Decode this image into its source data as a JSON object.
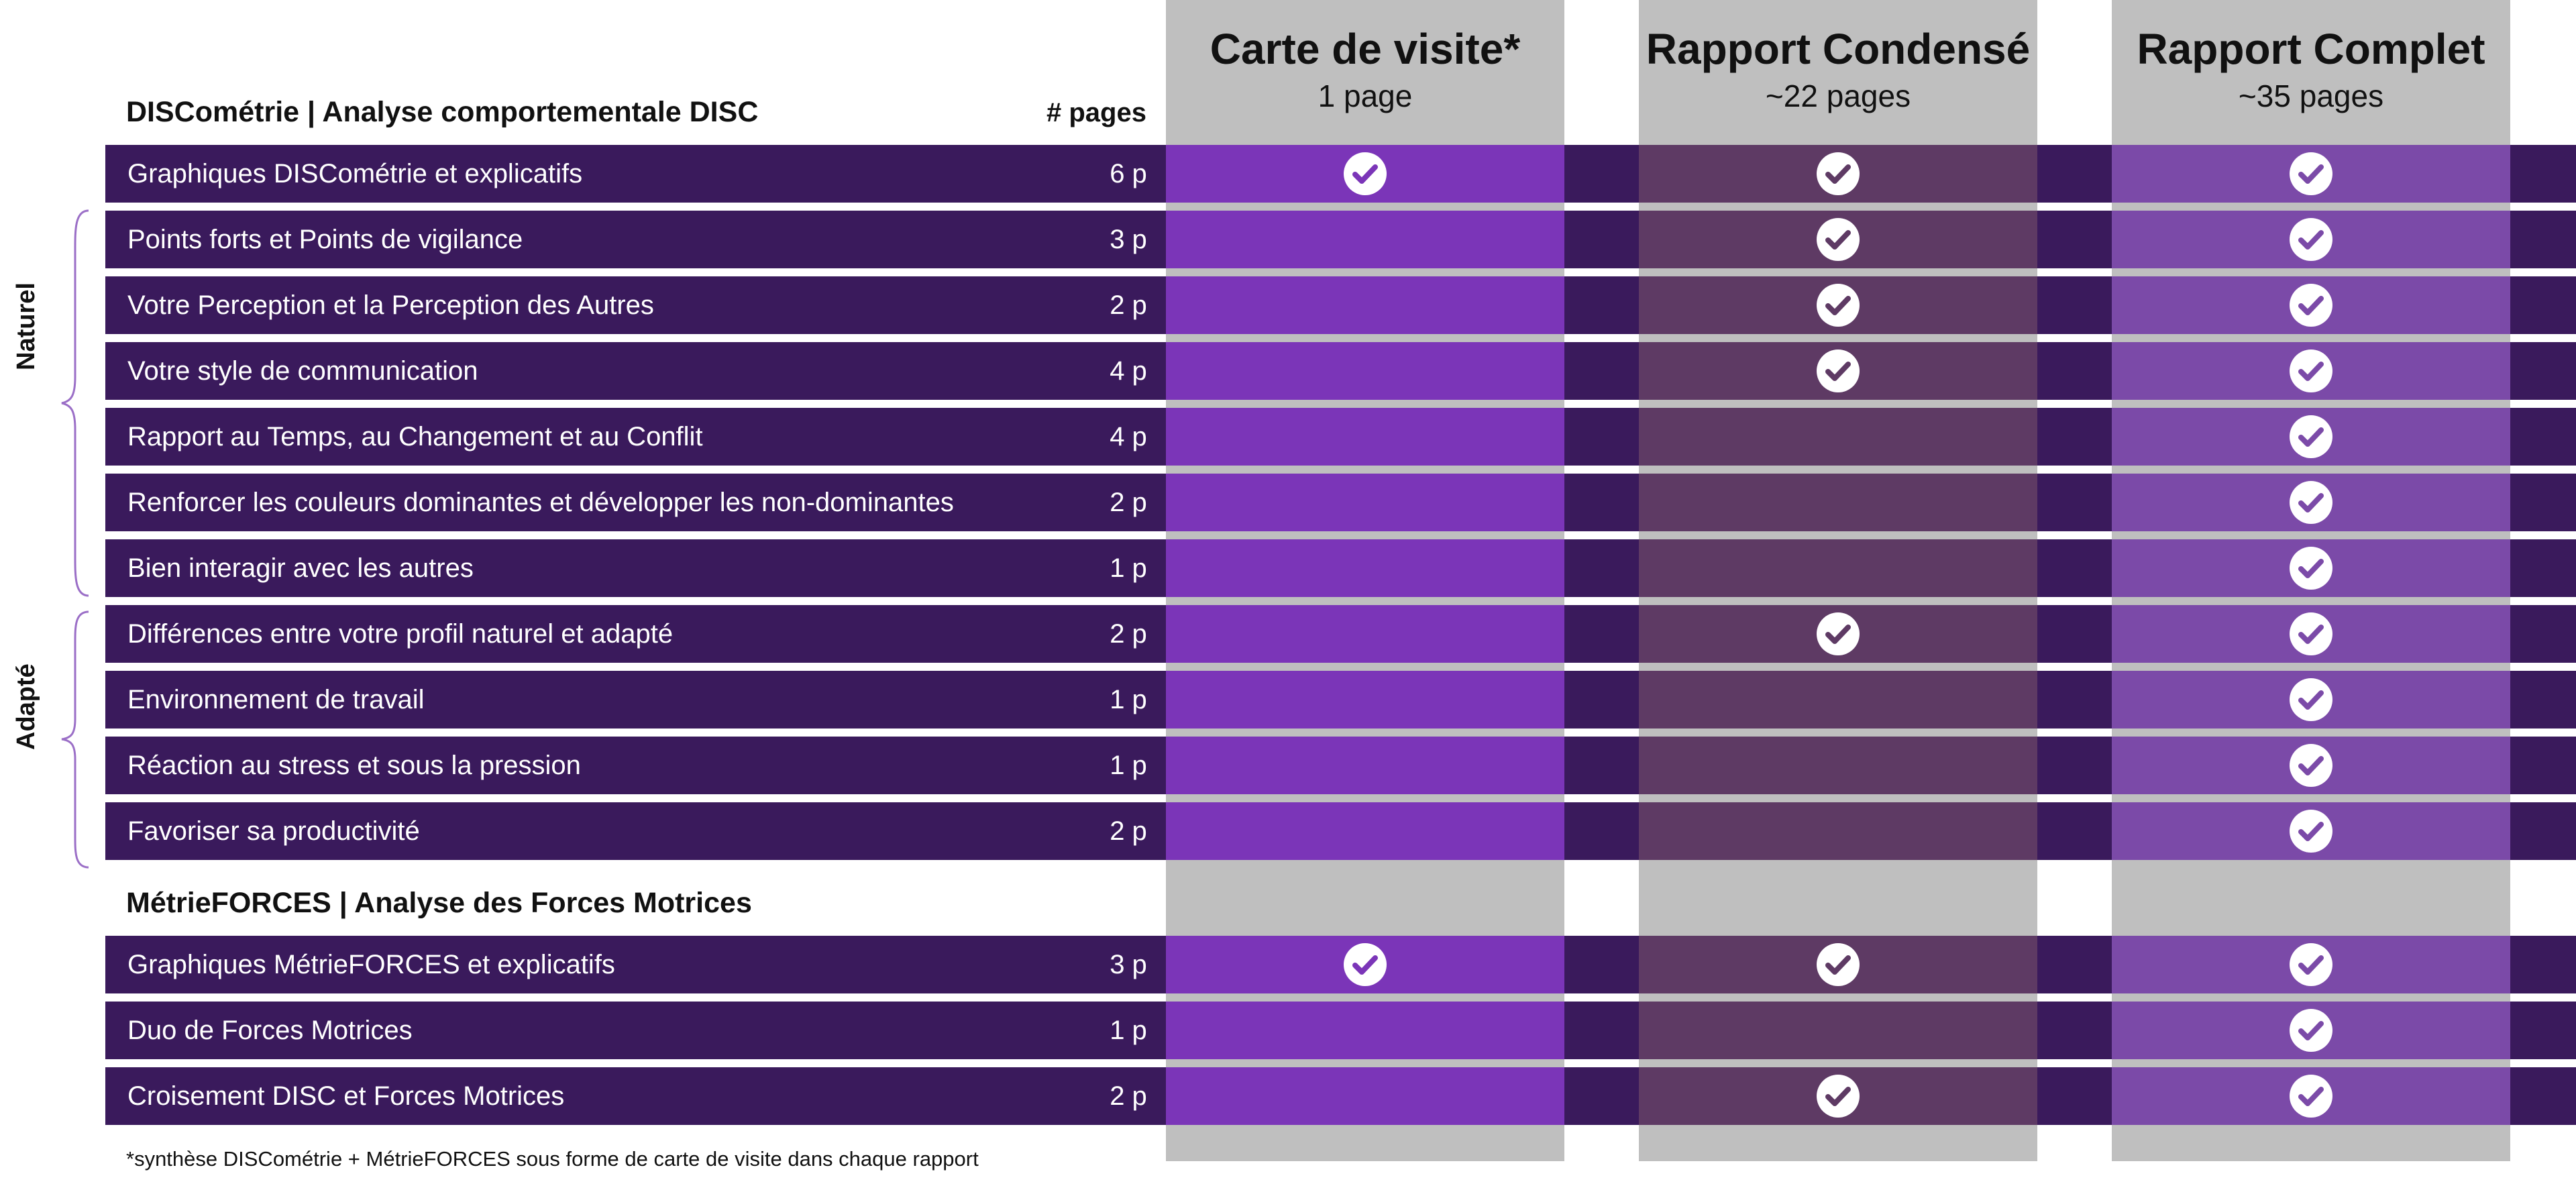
{
  "header": {
    "section1_title": "DISCométrie | Analyse comportementale DISC",
    "pages_header": "# pages",
    "section2_title": "MétrieFORCES | Analyse des Forces Motrices"
  },
  "columns": [
    {
      "title": "Carte de visite*",
      "subtitle": "1 page"
    },
    {
      "title": "Rapport Condensé",
      "subtitle": "~22 pages"
    },
    {
      "title": "Rapport Complet",
      "subtitle": "~35 pages"
    }
  ],
  "side_labels": {
    "naturel": "Naturel",
    "adapte": "Adapté"
  },
  "rows": [
    {
      "label": "Graphiques DISCométrie et explicatifs",
      "pages": "6 p",
      "checks": [
        true,
        true,
        true
      ]
    },
    {
      "label": "Points forts et Points de vigilance",
      "pages": "3 p",
      "checks": [
        false,
        true,
        true
      ]
    },
    {
      "label": "Votre Perception et la Perception des Autres",
      "pages": "2 p",
      "checks": [
        false,
        true,
        true
      ]
    },
    {
      "label": "Votre style de communication",
      "pages": "4 p",
      "checks": [
        false,
        true,
        true
      ]
    },
    {
      "label": "Rapport au Temps, au Changement et au Conflit",
      "pages": "4 p",
      "checks": [
        false,
        false,
        true
      ]
    },
    {
      "label": "Renforcer les couleurs dominantes et développer les non-dominantes",
      "pages": "2 p",
      "checks": [
        false,
        false,
        true
      ]
    },
    {
      "label": "Bien interagir avec les autres",
      "pages": "1 p",
      "checks": [
        false,
        false,
        true
      ]
    },
    {
      "label": "Différences entre votre profil naturel et adapté",
      "pages": "2 p",
      "checks": [
        false,
        true,
        true
      ]
    },
    {
      "label": "Environnement de travail",
      "pages": "1 p",
      "checks": [
        false,
        false,
        true
      ]
    },
    {
      "label": "Réaction au stress et sous la pression",
      "pages": "1 p",
      "checks": [
        false,
        false,
        true
      ]
    },
    {
      "label": "Favoriser sa productivité",
      "pages": "2 p",
      "checks": [
        false,
        false,
        true
      ]
    },
    {
      "label": "Graphiques MétrieFORCES et explicatifs",
      "pages": "3 p",
      "checks": [
        true,
        true,
        true
      ]
    },
    {
      "label": "Duo de Forces Motrices",
      "pages": "1 p",
      "checks": [
        false,
        false,
        true
      ]
    },
    {
      "label": "Croisement DISC et Forces Motrices",
      "pages": "2 p",
      "checks": [
        false,
        true,
        true
      ]
    }
  ],
  "footnote": "*synthèse DISCométrie + MétrieFORCES sous forme de carte de visite dans chaque rapport",
  "colors": {
    "row_dark": "#3a1a5c",
    "col1_purple": "#7b35b8",
    "col2_mauve": "#5e3a64",
    "col3_purple": "#7b4aa8",
    "header_grey": "#bfbfbf",
    "bracket": "#9b6fc7",
    "check_fill": "#ffffff"
  }
}
